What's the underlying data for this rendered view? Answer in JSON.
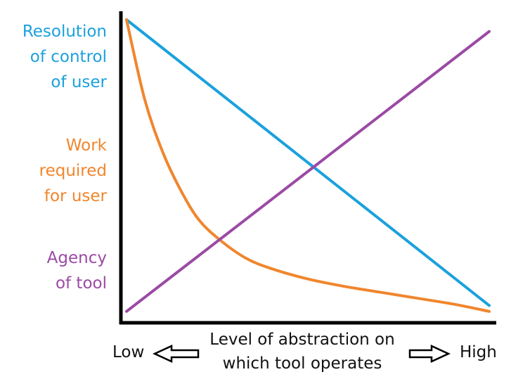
{
  "chart_data": {
    "type": "line",
    "title": "",
    "x_range": [
      0,
      1
    ],
    "y_range": [
      0,
      1
    ],
    "axis_ticks": "none",
    "grid": false,
    "legend": "none",
    "series": [
      {
        "name": "Resolution of control of user",
        "label_lines": [
          "Resolution",
          "of control",
          "of user"
        ],
        "color": "#1ba1dc",
        "points": [
          [
            0.0,
            1.0
          ],
          [
            1.0,
            0.03
          ]
        ]
      },
      {
        "name": "Work required for user",
        "label_lines": [
          "Work",
          "required",
          "for user"
        ],
        "color": "#f0862d",
        "points": [
          [
            0.0,
            1.0
          ],
          [
            0.05,
            0.73
          ],
          [
            0.1,
            0.55
          ],
          [
            0.15,
            0.42
          ],
          [
            0.2,
            0.32
          ],
          [
            0.26,
            0.25
          ],
          [
            0.33,
            0.19
          ],
          [
            0.4,
            0.155
          ],
          [
            0.5,
            0.12
          ],
          [
            0.6,
            0.095
          ],
          [
            0.7,
            0.075
          ],
          [
            0.8,
            0.055
          ],
          [
            0.9,
            0.035
          ],
          [
            1.0,
            0.01
          ]
        ]
      },
      {
        "name": "Agency of tool",
        "label_lines": [
          "Agency",
          "of tool"
        ],
        "color": "#9b4aa4",
        "points": [
          [
            0.0,
            0.01
          ],
          [
            1.0,
            0.96
          ]
        ]
      }
    ],
    "xlabel_lines": [
      "Level of abstraction on",
      "which tool operates"
    ],
    "x_low_label": "Low",
    "x_high_label": "High"
  }
}
